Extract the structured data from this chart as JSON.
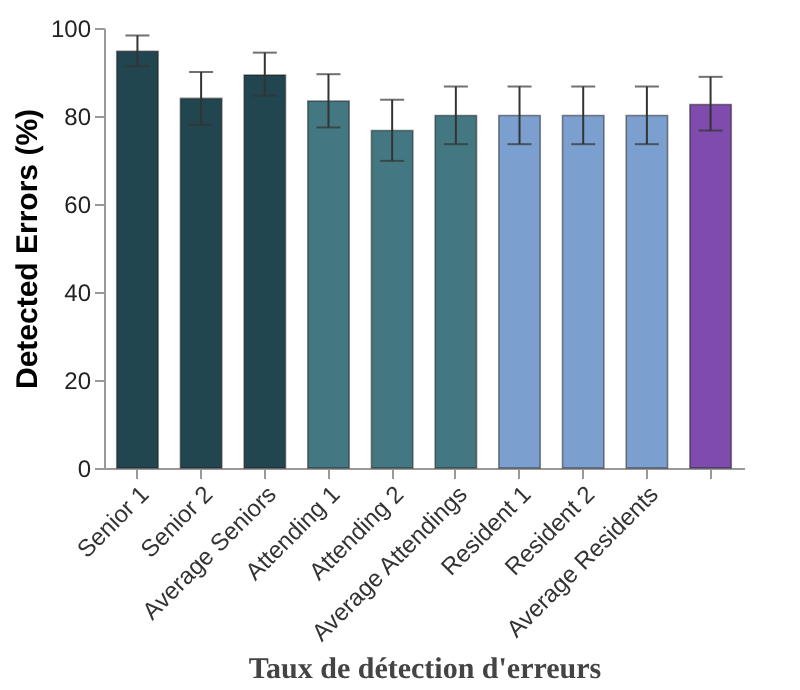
{
  "chart_data": {
    "type": "bar",
    "xlabel": "Taux de détection d'erreurs",
    "ylabel": "Detected Errors (%)",
    "categories": [
      "Senior 1",
      "Senior 2",
      "Average Seniors",
      "Attending 1",
      "Attending 2",
      "Average Attendings",
      "Resident 1",
      "Resident 2",
      "Average Residents",
      null
    ],
    "values": [
      94.7,
      84.0,
      89.3,
      83.4,
      76.7,
      80.1,
      80.1,
      80.1,
      80.1,
      82.6
    ],
    "errors": [
      [
        91.3,
        98.3
      ],
      [
        78.0,
        90.0
      ],
      [
        84.6,
        94.4
      ],
      [
        77.4,
        89.5
      ],
      [
        69.8,
        83.7
      ],
      [
        73.6,
        86.7
      ],
      [
        73.6,
        86.7
      ],
      [
        73.6,
        86.7
      ],
      [
        73.6,
        86.7
      ],
      [
        76.7,
        88.9
      ]
    ],
    "colors": [
      "#22464f",
      "#22464f",
      "#22464f",
      "#437882",
      "#437882",
      "#437882",
      "#7b9fcf",
      "#7b9fcf",
      "#7b9fcf",
      "#7f4bad"
    ],
    "ylim": [
      0,
      100
    ],
    "yticks": [
      0,
      20,
      40,
      60,
      80,
      100
    ],
    "grid": false
  }
}
